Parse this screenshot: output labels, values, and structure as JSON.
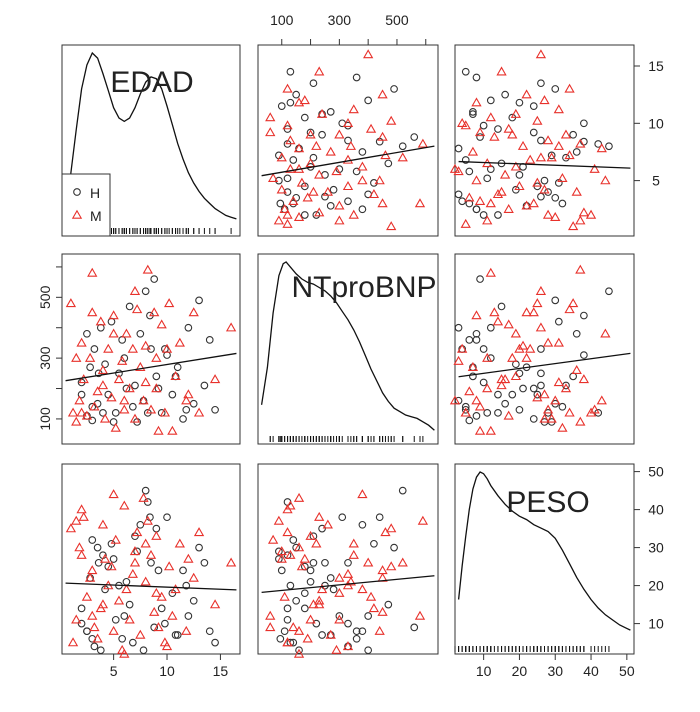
{
  "chart_data": {
    "type": "scatter-matrix",
    "title": "",
    "variables": [
      {
        "name": "EDAD",
        "range": [
          0.5,
          16.5
        ],
        "ticks": [
          5,
          10,
          15
        ]
      },
      {
        "name": "NTproBNP",
        "range": [
          30,
          630
        ],
        "ticks": [
          100,
          300,
          500
        ],
        "minor_ticks": [
          200,
          400,
          600
        ]
      },
      {
        "name": "PESO",
        "range": [
          3,
          51
        ],
        "ticks": [
          10,
          20,
          30,
          40,
          50
        ]
      }
    ],
    "legend": {
      "entries": [
        {
          "label": "H",
          "marker": "circle",
          "color": "#333333"
        },
        {
          "label": "M",
          "marker": "triangle",
          "color": "#e8312b"
        }
      ],
      "placement": "top-left panel, bottom-left"
    },
    "diagonal": "kernel density with rug",
    "density": {
      "EDAD": [
        [
          0.5,
          0.0
        ],
        [
          1.0,
          0.3
        ],
        [
          1.5,
          0.55
        ],
        [
          2.0,
          0.79
        ],
        [
          2.5,
          0.93
        ],
        [
          3.0,
          1.0
        ],
        [
          3.5,
          0.97
        ],
        [
          4.0,
          0.88
        ],
        [
          4.5,
          0.78
        ],
        [
          5.0,
          0.68
        ],
        [
          5.5,
          0.62
        ],
        [
          6.0,
          0.6
        ],
        [
          6.5,
          0.62
        ],
        [
          7.0,
          0.68
        ],
        [
          7.5,
          0.76
        ],
        [
          8.0,
          0.83
        ],
        [
          8.5,
          0.86
        ],
        [
          9.0,
          0.85
        ],
        [
          9.5,
          0.79
        ],
        [
          10.0,
          0.69
        ],
        [
          10.5,
          0.58
        ],
        [
          11.0,
          0.47
        ],
        [
          11.5,
          0.38
        ],
        [
          12.0,
          0.3
        ],
        [
          12.5,
          0.24
        ],
        [
          13.0,
          0.19
        ],
        [
          13.5,
          0.15
        ],
        [
          14.0,
          0.12
        ],
        [
          14.5,
          0.09
        ],
        [
          15.0,
          0.07
        ],
        [
          15.5,
          0.05
        ],
        [
          16.0,
          0.04
        ],
        [
          16.5,
          0.03
        ]
      ],
      "NTproBNP": [
        [
          30,
          0.16
        ],
        [
          50,
          0.38
        ],
        [
          70,
          0.7
        ],
        [
          90,
          0.92
        ],
        [
          105,
          0.99
        ],
        [
          115,
          1.0
        ],
        [
          130,
          0.97
        ],
        [
          150,
          0.93
        ],
        [
          170,
          0.9
        ],
        [
          190,
          0.88
        ],
        [
          210,
          0.87
        ],
        [
          230,
          0.85
        ],
        [
          250,
          0.83
        ],
        [
          270,
          0.8
        ],
        [
          290,
          0.76
        ],
        [
          310,
          0.71
        ],
        [
          330,
          0.66
        ],
        [
          350,
          0.6
        ],
        [
          370,
          0.53
        ],
        [
          390,
          0.45
        ],
        [
          410,
          0.37
        ],
        [
          430,
          0.3
        ],
        [
          450,
          0.23
        ],
        [
          470,
          0.18
        ],
        [
          490,
          0.14
        ],
        [
          510,
          0.12
        ],
        [
          530,
          0.1
        ],
        [
          550,
          0.09
        ],
        [
          570,
          0.08
        ],
        [
          590,
          0.06
        ],
        [
          610,
          0.04
        ],
        [
          630,
          0.01
        ]
      ],
      "PESO": [
        [
          3,
          0.25
        ],
        [
          4,
          0.45
        ],
        [
          5,
          0.62
        ],
        [
          6,
          0.78
        ],
        [
          7,
          0.9
        ],
        [
          8,
          0.97
        ],
        [
          9,
          1.0
        ],
        [
          10,
          0.99
        ],
        [
          11,
          0.96
        ],
        [
          12,
          0.92
        ],
        [
          14,
          0.86
        ],
        [
          16,
          0.81
        ],
        [
          18,
          0.77
        ],
        [
          20,
          0.74
        ],
        [
          22,
          0.72
        ],
        [
          24,
          0.69
        ],
        [
          26,
          0.67
        ],
        [
          28,
          0.65
        ],
        [
          30,
          0.61
        ],
        [
          32,
          0.54
        ],
        [
          34,
          0.46
        ],
        [
          36,
          0.38
        ],
        [
          38,
          0.31
        ],
        [
          40,
          0.25
        ],
        [
          42,
          0.2
        ],
        [
          44,
          0.16
        ],
        [
          46,
          0.13
        ],
        [
          48,
          0.1
        ],
        [
          50,
          0.08
        ],
        [
          51,
          0.07
        ]
      ]
    },
    "observations": {
      "H": [
        [
          2.5,
          110,
          8
        ],
        [
          3,
          95,
          6
        ],
        [
          3.5,
          150,
          30
        ],
        [
          4,
          120,
          28
        ],
        [
          2,
          220,
          10
        ],
        [
          2.8,
          270,
          22
        ],
        [
          3.2,
          330,
          4
        ],
        [
          3.8,
          400,
          3
        ],
        [
          4.5,
          180,
          25
        ],
        [
          5,
          90,
          27
        ],
        [
          5.5,
          250,
          20
        ],
        [
          6,
          300,
          12
        ],
        [
          6.5,
          470,
          15
        ],
        [
          6.8,
          140,
          5
        ],
        [
          7,
          210,
          33
        ],
        [
          7.5,
          380,
          36
        ],
        [
          8,
          520,
          45
        ],
        [
          8.2,
          120,
          42
        ],
        [
          8.5,
          330,
          26
        ],
        [
          8.8,
          560,
          9
        ],
        [
          9,
          240,
          35
        ],
        [
          9.5,
          120,
          14
        ],
        [
          10,
          310,
          38
        ],
        [
          10.5,
          180,
          18
        ],
        [
          11,
          270,
          7
        ],
        [
          11.5,
          100,
          24
        ],
        [
          12,
          400,
          12
        ],
        [
          12.5,
          150,
          16
        ],
        [
          13,
          490,
          30
        ],
        [
          13.5,
          210,
          26
        ],
        [
          14,
          360,
          8
        ],
        [
          14.5,
          130,
          5
        ],
        [
          2,
          180,
          14
        ],
        [
          2.5,
          380,
          8
        ],
        [
          3,
          140,
          32
        ],
        [
          4.2,
          280,
          19
        ],
        [
          5.2,
          120,
          11
        ],
        [
          5.8,
          360,
          6
        ],
        [
          6.2,
          200,
          21
        ],
        [
          7.2,
          90,
          29
        ],
        [
          7.8,
          160,
          3
        ],
        [
          8.4,
          440,
          38
        ],
        [
          9.2,
          200,
          24
        ],
        [
          9.8,
          330,
          10
        ],
        [
          10.8,
          240,
          7
        ],
        [
          11.8,
          130,
          20
        ],
        [
          3.6,
          250,
          26
        ],
        [
          4.8,
          420,
          31
        ]
      ],
      "M": [
        [
          1,
          480,
          35
        ],
        [
          1.2,
          120,
          5
        ],
        [
          1.5,
          90,
          37
        ],
        [
          1.8,
          160,
          30
        ],
        [
          2,
          350,
          28
        ],
        [
          2.2,
          230,
          38
        ],
        [
          2.5,
          110,
          17
        ],
        [
          2.8,
          300,
          22
        ],
        [
          3,
          580,
          12
        ],
        [
          3.2,
          140,
          9
        ],
        [
          3.5,
          190,
          6
        ],
        [
          3.8,
          420,
          14
        ],
        [
          4,
          260,
          36
        ],
        [
          4.2,
          100,
          27
        ],
        [
          4.5,
          330,
          20
        ],
        [
          4.8,
          170,
          25
        ],
        [
          5,
          440,
          8
        ],
        [
          5.2,
          70,
          32
        ],
        [
          5.5,
          230,
          16
        ],
        [
          5.8,
          290,
          3
        ],
        [
          6,
          130,
          41
        ],
        [
          6.2,
          380,
          19
        ],
        [
          6.5,
          200,
          11
        ],
        [
          6.8,
          330,
          23
        ],
        [
          7,
          100,
          29
        ],
        [
          7.2,
          460,
          34
        ],
        [
          7.5,
          270,
          7
        ],
        [
          7.8,
          160,
          43
        ],
        [
          8,
          340,
          21
        ],
        [
          8.2,
          590,
          37
        ],
        [
          8.5,
          130,
          28
        ],
        [
          8.8,
          450,
          13
        ],
        [
          9,
          200,
          33
        ],
        [
          9.2,
          60,
          9
        ],
        [
          9.5,
          410,
          17
        ],
        [
          9.8,
          120,
          5
        ],
        [
          10,
          330,
          4
        ],
        [
          10.2,
          480,
          25
        ],
        [
          10.5,
          60,
          12
        ],
        [
          10.8,
          240,
          19
        ],
        [
          11.2,
          350,
          31
        ],
        [
          11.8,
          160,
          8
        ],
        [
          12.5,
          450,
          22
        ],
        [
          13,
          120,
          34
        ],
        [
          14.5,
          230,
          15
        ],
        [
          16,
          400,
          26
        ],
        [
          2,
          120,
          40
        ],
        [
          3,
          450,
          24
        ],
        [
          4,
          210,
          15
        ],
        [
          5,
          380,
          44
        ],
        [
          6,
          160,
          2
        ],
        [
          7,
          520,
          26
        ],
        [
          8,
          220,
          31
        ],
        [
          9,
          300,
          18
        ],
        [
          1.5,
          300,
          11
        ],
        [
          12,
          180,
          27
        ]
      ]
    },
    "regression_lines": {
      "EDAD_vs_NTproBNP": {
        "slope": 5.6,
        "intercept": 223
      },
      "EDAD_vs_PESO": {
        "slope": -0.11,
        "intercept": 20.7
      },
      "NTproBNP_vs_PESO": {
        "slope": 0.0073,
        "intercept": 18.0
      }
    }
  }
}
